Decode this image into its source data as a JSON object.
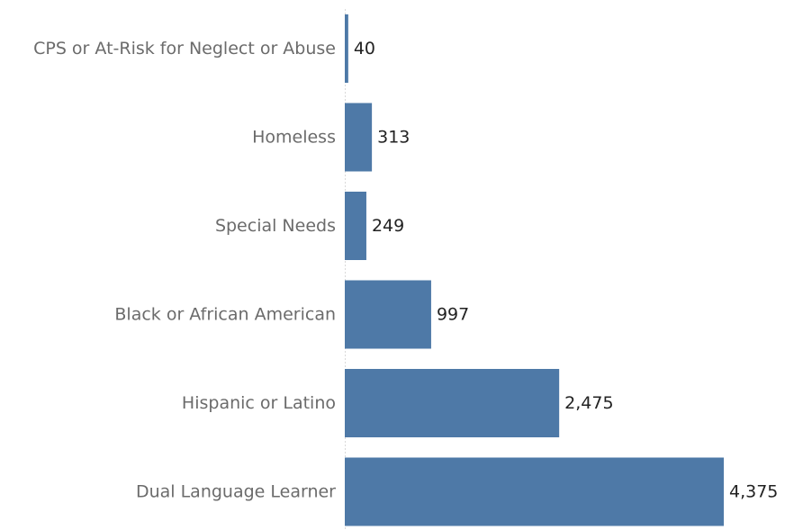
{
  "chart_data": {
    "type": "bar",
    "orientation": "horizontal",
    "categories": [
      "CPS or At-Risk for Neglect or Abuse",
      "Homeless",
      "Special Needs",
      "Black or African American",
      "Hispanic or Latino",
      "Dual Language Learner"
    ],
    "values": [
      40,
      313,
      249,
      997,
      2475,
      4375
    ],
    "value_labels": [
      "40",
      "313",
      "249",
      "997",
      "2,475",
      "4,375"
    ],
    "xlim": [
      0,
      4375
    ],
    "bar_color": "#4e79a7",
    "grid": false,
    "legend": "none"
  }
}
